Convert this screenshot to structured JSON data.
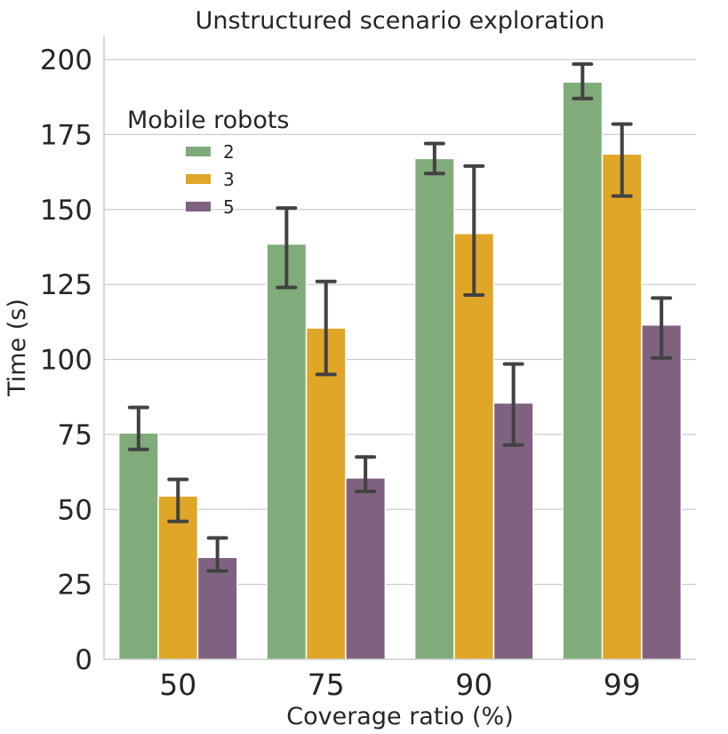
{
  "chart_data": {
    "type": "bar",
    "title": "Unstructured scenario exploration",
    "xlabel": "Coverage ratio (%)",
    "ylabel": "Time (s)",
    "categories": [
      "50",
      "75",
      "90",
      "99"
    ],
    "ylim": [
      0,
      208
    ],
    "yticks": [
      "0",
      "25",
      "50",
      "75",
      "100",
      "125",
      "150",
      "175",
      "200"
    ],
    "grid": "horizontal",
    "legend": {
      "title": "Mobile robots",
      "placement": "upper-left"
    },
    "series": [
      {
        "name": "2",
        "color": "#80ab7a",
        "values": [
          75.5,
          138.5,
          167,
          192.5
        ],
        "err_low": [
          70,
          124,
          162,
          187
        ],
        "err_high": [
          84,
          150.5,
          172,
          198.5
        ]
      },
      {
        "name": "3",
        "color": "#e0a628",
        "values": [
          54.5,
          110.5,
          142,
          168.5
        ],
        "err_low": [
          46,
          95,
          121.5,
          154.5
        ],
        "err_high": [
          60,
          126,
          164.5,
          178.5
        ]
      },
      {
        "name": "5",
        "color": "#7f6280",
        "values": [
          34,
          60.5,
          85.5,
          111.5
        ],
        "err_low": [
          29.5,
          56,
          71.5,
          100.5
        ],
        "err_high": [
          40.5,
          67.5,
          98.5,
          120.5
        ]
      }
    ]
  }
}
